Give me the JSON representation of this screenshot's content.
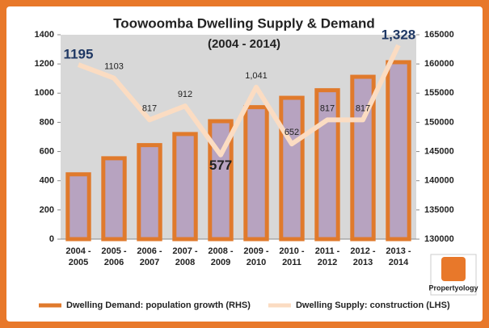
{
  "chart_data": {
    "type": "bar-line",
    "title": "Toowoomba Dwelling Supply & Demand",
    "subtitle": "(2004 - 2014)",
    "categories": [
      "2004 - 2005",
      "2005 - 2006",
      "2006 - 2007",
      "2007 - 2008",
      "2008 - 2009",
      "2009 - 2010",
      "2010 - 2011",
      "2011 - 2012",
      "2012 - 2013",
      "2013 - 2014"
    ],
    "series": [
      {
        "name": "Dwelling Demand: population growth (RHS)",
        "type": "bar",
        "axis": "y2",
        "color": "#b7a3c0",
        "edge": "#e07a2c",
        "values": [
          141100,
          143850,
          146100,
          148000,
          150200,
          152600,
          154200,
          155500,
          157800,
          160300
        ]
      },
      {
        "name": "Dwelling Supply: construction (LHS)",
        "type": "line",
        "color": "#fbdcc2",
        "values": [
          1195,
          1103,
          817,
          912,
          577,
          1041,
          652,
          817,
          817,
          1328
        ],
        "value_labels": [
          "1195",
          "1103",
          "817",
          "912",
          "577",
          "1,041",
          "652",
          "817",
          "817",
          "1,328"
        ]
      }
    ],
    "ylim": [
      0,
      1400
    ],
    "yticks": [
      0,
      200,
      400,
      600,
      800,
      1000,
      1200,
      1400
    ],
    "y2lim": [
      130000,
      165000
    ],
    "y2ticks": [
      130000,
      135000,
      140000,
      145000,
      150000,
      155000,
      160000,
      165000
    ],
    "grid": false,
    "legend": "bottom",
    "logo": "Propertyology"
  }
}
